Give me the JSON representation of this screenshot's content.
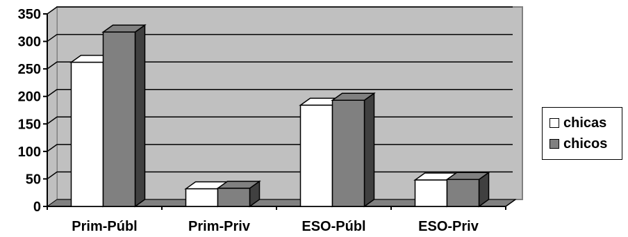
{
  "chart_data": {
    "type": "bar",
    "style": "3d-clustered-column",
    "categories": [
      "Prim-Públ",
      "Prim-Priv",
      "ESO-Públ",
      "ESO-Priv"
    ],
    "series": [
      {
        "name": "chicas",
        "color": "#ffffff",
        "values": [
          262,
          32,
          184,
          48
        ]
      },
      {
        "name": "chicos",
        "color": "#808080",
        "values": [
          317,
          33,
          193,
          49
        ]
      }
    ],
    "ylim": [
      0,
      350
    ],
    "yticks": [
      0,
      50,
      100,
      150,
      200,
      250,
      300,
      350
    ],
    "grid": true,
    "legend_position": "right",
    "colors": {
      "wall": "#c0c0c0",
      "floor": "#808080",
      "side_white": "#d9d9d9",
      "side_gray": "#404040"
    }
  }
}
